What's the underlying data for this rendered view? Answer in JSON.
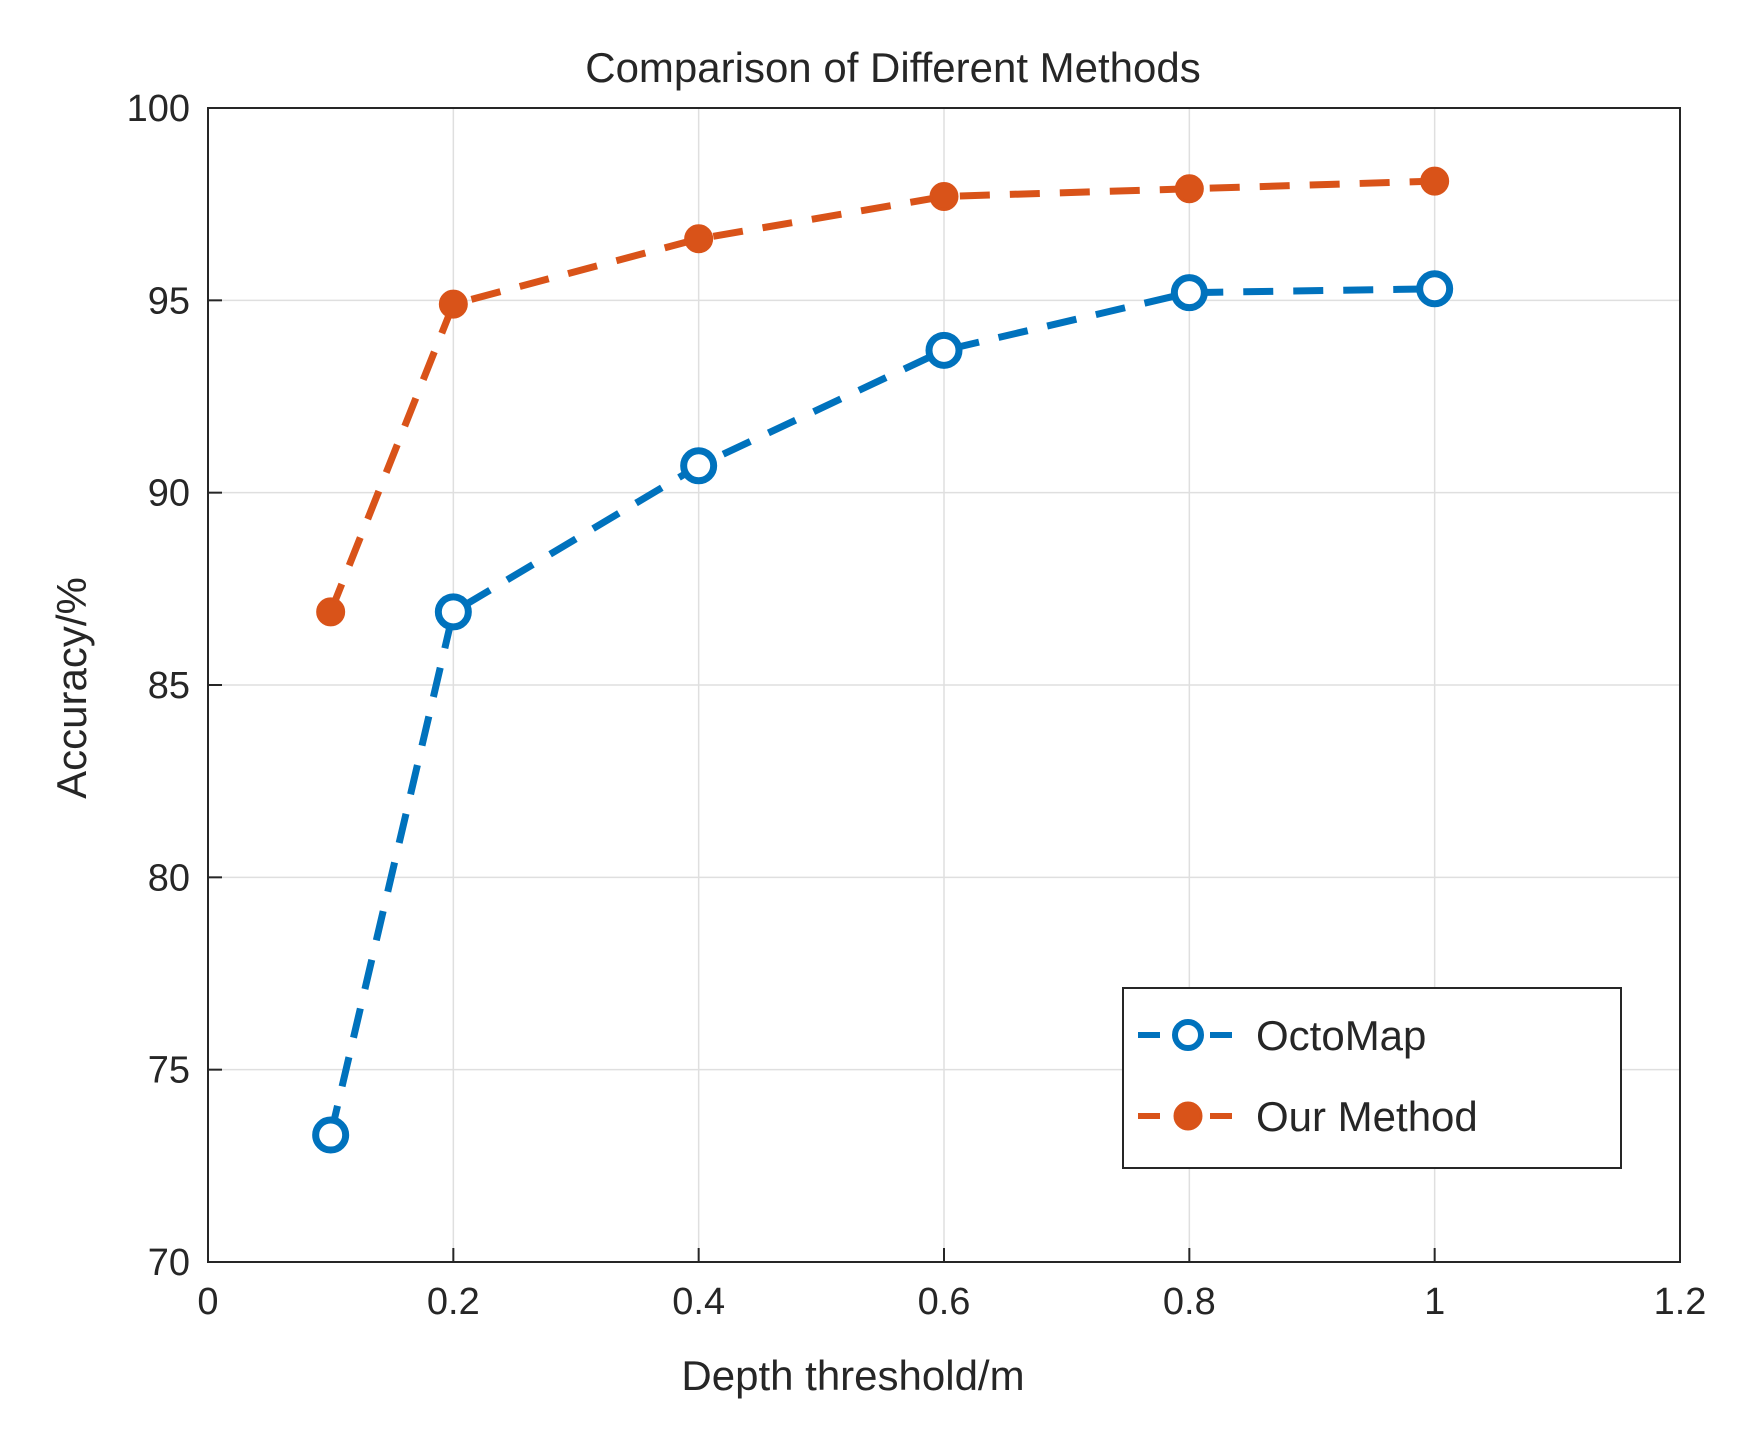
{
  "chart_data": {
    "type": "line",
    "title": "Comparison of Different Methods",
    "xlabel": "Depth threshold/m",
    "ylabel": "Accuracy/%",
    "xlim": [
      0,
      1.2
    ],
    "ylim": [
      70,
      100
    ],
    "xticks": [
      0,
      0.2,
      0.4,
      0.6,
      0.8,
      1,
      1.2
    ],
    "xtick_labels": [
      "0",
      "0.2",
      "0.4",
      "0.6",
      "0.8",
      "1",
      "1.2"
    ],
    "yticks": [
      70,
      75,
      80,
      85,
      90,
      95,
      100
    ],
    "ytick_labels": [
      "70",
      "75",
      "80",
      "85",
      "90",
      "95",
      "100"
    ],
    "grid": true,
    "legend_position": "bottom-right",
    "x": [
      0.1,
      0.2,
      0.4,
      0.6,
      0.8,
      1.0
    ],
    "series": [
      {
        "name": "OctoMap",
        "color": "#0072bd",
        "marker": "open-circle",
        "line_style": "dashed",
        "values": [
          73.3,
          86.9,
          90.7,
          93.7,
          95.2,
          95.3
        ]
      },
      {
        "name": "Our Method",
        "color": "#d95319",
        "marker": "filled-circle",
        "line_style": "dashed",
        "values": [
          86.9,
          94.9,
          96.6,
          97.7,
          97.9,
          98.1
        ]
      }
    ]
  }
}
